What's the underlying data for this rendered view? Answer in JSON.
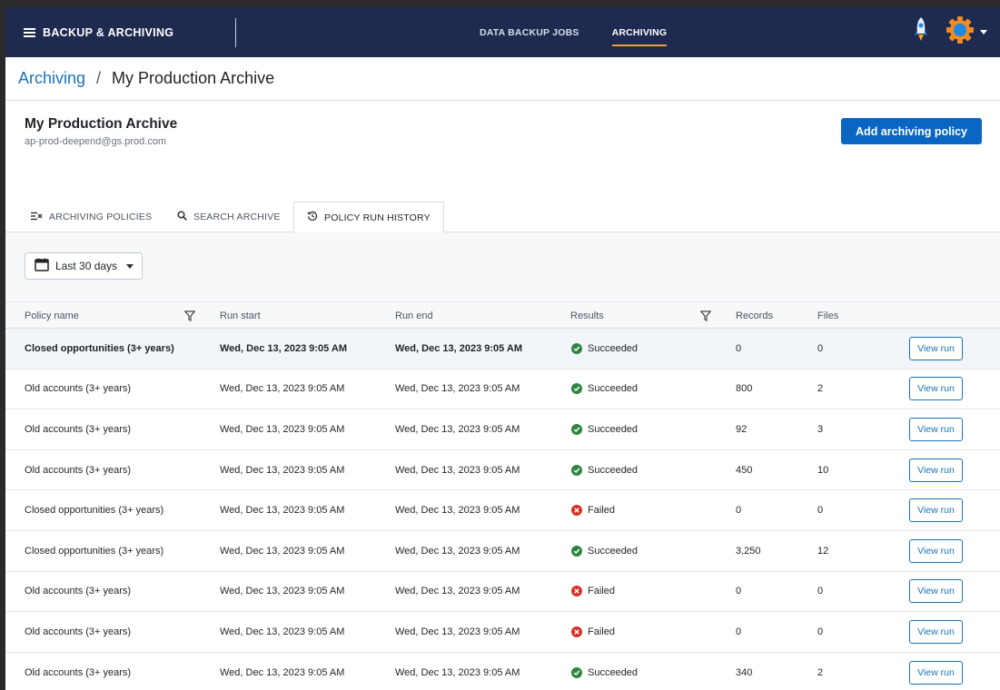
{
  "app": {
    "title": "BACKUP & ARCHIVING",
    "nav": [
      {
        "label": "DATA BACKUP JOBS",
        "active": false
      },
      {
        "label": "ARCHIVING",
        "active": true
      }
    ],
    "accent": "#e9a23b",
    "bar_color": "#1e2a4f"
  },
  "breadcrumb": {
    "root": "Archiving",
    "separator": "/",
    "current": "My Production Archive"
  },
  "archive": {
    "title": "My Production Archive",
    "account": "ap-prod-deepend@gs.prod.com",
    "add_button": "Add archiving policy"
  },
  "tabs": [
    {
      "label": "ARCHIVING POLICIES",
      "icon": "filter-list-icon",
      "active": false
    },
    {
      "label": "SEARCH ARCHIVE",
      "icon": "search-icon",
      "active": false
    },
    {
      "label": "POLICY RUN HISTORY",
      "icon": "history-icon",
      "active": true
    }
  ],
  "filter": {
    "date_range": "Last 30 days"
  },
  "table": {
    "columns": {
      "policy": "Policy name",
      "start": "Run start",
      "end": "Run end",
      "results": "Results",
      "records": "Records",
      "files": "Files"
    },
    "action_label": "View run",
    "rows": [
      {
        "policy": "Closed opportunities (3+ years)",
        "start": "Wed, Dec 13, 2023 9:05 AM",
        "end": "Wed, Dec 13, 2023 9:05 AM",
        "result": "Succeeded",
        "status": "ok",
        "records": "0",
        "files": "0"
      },
      {
        "policy": "Old accounts (3+ years)",
        "start": "Wed, Dec 13, 2023 9:05 AM",
        "end": "Wed, Dec 13, 2023 9:05 AM",
        "result": "Succeeded",
        "status": "ok",
        "records": "800",
        "files": "2"
      },
      {
        "policy": "Old accounts (3+ years)",
        "start": "Wed, Dec 13, 2023 9:05 AM",
        "end": "Wed, Dec 13, 2023 9:05 AM",
        "result": "Succeeded",
        "status": "ok",
        "records": "92",
        "files": "3"
      },
      {
        "policy": "Old accounts (3+ years)",
        "start": "Wed, Dec 13, 2023 9:05 AM",
        "end": "Wed, Dec 13, 2023 9:05 AM",
        "result": "Succeeded",
        "status": "ok",
        "records": "450",
        "files": "10"
      },
      {
        "policy": "Closed opportunities (3+ years)",
        "start": "Wed, Dec 13, 2023 9:05 AM",
        "end": "Wed, Dec 13, 2023 9:05 AM",
        "result": "Failed",
        "status": "fail",
        "records": "0",
        "files": "0"
      },
      {
        "policy": "Closed opportunities (3+ years)",
        "start": "Wed, Dec 13, 2023 9:05 AM",
        "end": "Wed, Dec 13, 2023 9:05 AM",
        "result": "Succeeded",
        "status": "ok",
        "records": "3,250",
        "files": "12"
      },
      {
        "policy": "Old accounts (3+ years)",
        "start": "Wed, Dec 13, 2023 9:05 AM",
        "end": "Wed, Dec 13, 2023 9:05 AM",
        "result": "Failed",
        "status": "fail",
        "records": "0",
        "files": "0"
      },
      {
        "policy": "Old accounts (3+ years)",
        "start": "Wed, Dec 13, 2023 9:05 AM",
        "end": "Wed, Dec 13, 2023 9:05 AM",
        "result": "Failed",
        "status": "fail",
        "records": "0",
        "files": "0"
      },
      {
        "policy": "Old accounts (3+ years)",
        "start": "Wed, Dec 13, 2023 9:05 AM",
        "end": "Wed, Dec 13, 2023 9:05 AM",
        "result": "Succeeded",
        "status": "ok",
        "records": "340",
        "files": "2"
      }
    ]
  }
}
